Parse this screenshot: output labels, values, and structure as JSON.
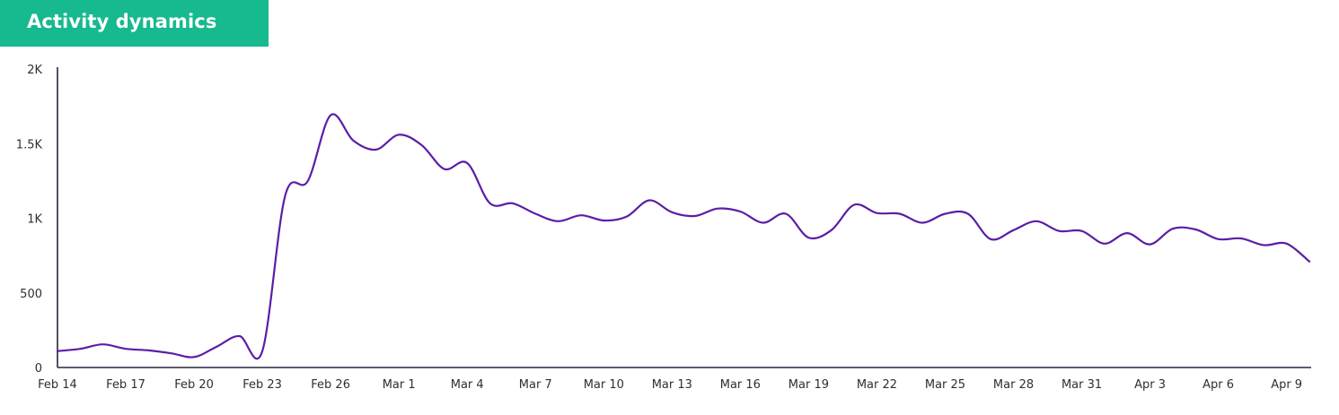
{
  "header": {
    "title": "Activity dynamics",
    "accent_color": "#17b98e"
  },
  "chart_data": {
    "type": "line",
    "title": "Activity dynamics",
    "xlabel": "",
    "ylabel": "",
    "ylim": [
      0,
      2000
    ],
    "yticks": [
      0,
      500,
      1000,
      1500,
      2000
    ],
    "ytick_labels": [
      "0",
      "500",
      "1K",
      "1.5K",
      "2K"
    ],
    "x_tick_labels": [
      "Feb 14",
      "Feb 17",
      "Feb 20",
      "Feb 23",
      "Feb 26",
      "Mar 1",
      "Mar 4",
      "Mar 7",
      "Mar 10",
      "Mar 13",
      "Mar 16",
      "Mar 19",
      "Mar 22",
      "Mar 25",
      "Mar 28",
      "Mar 31",
      "Apr 3",
      "Apr 6",
      "Apr 9"
    ],
    "x_tick_step_days": 3,
    "line_color": "#5b1ea6",
    "grid": false,
    "series": [
      {
        "x": [
          "Feb 14",
          "Feb 15",
          "Feb 16",
          "Feb 17",
          "Feb 18",
          "Feb 19",
          "Feb 20",
          "Feb 21",
          "Feb 22",
          "Feb 23",
          "Feb 24",
          "Feb 25",
          "Feb 26",
          "Feb 27",
          "Feb 28",
          "Mar 1",
          "Mar 2",
          "Mar 3",
          "Mar 4",
          "Mar 5",
          "Mar 6",
          "Mar 7",
          "Mar 8",
          "Mar 9",
          "Mar 10",
          "Mar 11",
          "Mar 12",
          "Mar 13",
          "Mar 14",
          "Mar 15",
          "Mar 16",
          "Mar 17",
          "Mar 18",
          "Mar 19",
          "Mar 20",
          "Mar 21",
          "Mar 22",
          "Mar 23",
          "Mar 24",
          "Mar 25",
          "Mar 26",
          "Mar 27",
          "Mar 28",
          "Mar 29",
          "Mar 30",
          "Mar 31",
          "Apr 1",
          "Apr 2",
          "Apr 3",
          "Apr 4",
          "Apr 5",
          "Apr 6",
          "Apr 7",
          "Apr 8",
          "Apr 9",
          "Apr 10"
        ],
        "values": [
          110,
          125,
          155,
          125,
          115,
          95,
          70,
          140,
          210,
          110,
          1150,
          1250,
          1690,
          1520,
          1460,
          1560,
          1490,
          1330,
          1370,
          1100,
          1100,
          1030,
          980,
          1020,
          985,
          1010,
          1120,
          1040,
          1015,
          1065,
          1045,
          970,
          1030,
          870,
          920,
          1090,
          1035,
          1030,
          970,
          1030,
          1030,
          860,
          920,
          980,
          915,
          915,
          830,
          900,
          825,
          930,
          925,
          860,
          865,
          820,
          830,
          710
        ]
      }
    ]
  }
}
